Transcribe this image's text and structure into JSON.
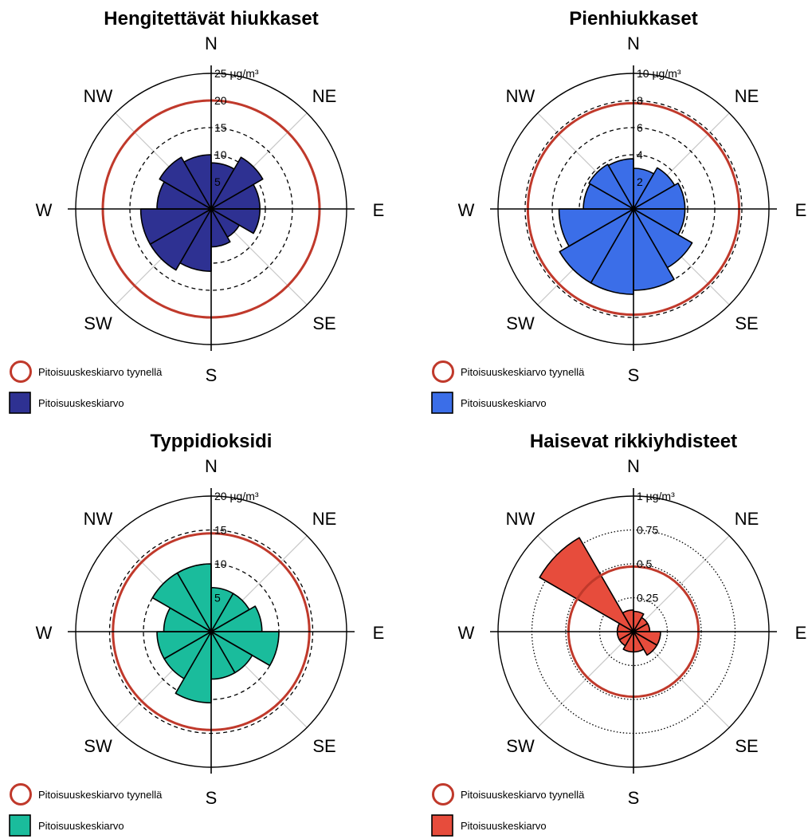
{
  "colors": {
    "calm_ring": "#c0392b",
    "axis": "#000000",
    "spoke": "#c8c8c8"
  },
  "directions": [
    "N",
    "NE",
    "E",
    "SE",
    "S",
    "SW",
    "W",
    "NW"
  ],
  "legend": {
    "calm": "Pitoisuuskeskiarvo tyynellä",
    "mean": "Pitoisuuskeskiarvo"
  },
  "chart_data": [
    {
      "type": "polar-bar",
      "title": "Hengitettävät hiukkaset",
      "unit": "µg/m³",
      "rmax": 25,
      "tick_values": [
        25,
        20,
        15,
        10,
        5
      ],
      "tick_labels": [
        "25 µg/m³",
        "20",
        "15",
        "10",
        "5"
      ],
      "dashed_rings": [
        5,
        10,
        15,
        20
      ],
      "ring_style": "dashed",
      "calm_value": 20,
      "color": "#2e3192",
      "sectors": 12,
      "values": [
        8.5,
        11,
        9,
        9,
        6,
        7,
        11.5,
        13,
        13,
        10,
        11,
        10
      ]
    },
    {
      "type": "polar-bar",
      "title": "Pienhiukkaset",
      "unit": "µg/m³",
      "rmax": 10,
      "tick_values": [
        10,
        8,
        6,
        4,
        2
      ],
      "tick_labels": [
        "10 µg/m³",
        "8",
        "6",
        "4",
        "2"
      ],
      "dashed_rings": [
        2,
        4,
        6,
        8
      ],
      "ring_style": "dashed",
      "calm_value": 7.8,
      "color": "#3b6ee8",
      "sectors": 12,
      "values": [
        3,
        3.5,
        3.8,
        3.8,
        5,
        6,
        6.3,
        6.3,
        5.5,
        3.7,
        3.8,
        3.7
      ]
    },
    {
      "type": "polar-bar",
      "title": "Typpidioksidi",
      "unit": "µg/m³",
      "rmax": 20,
      "tick_values": [
        20,
        15,
        10,
        5
      ],
      "tick_labels": [
        "20 µg/m³",
        "15",
        "10",
        "5"
      ],
      "dashed_rings": [
        5,
        10,
        15
      ],
      "ring_style": "dashed",
      "calm_value": 14.5,
      "color": "#1abc9c",
      "sectors": 12,
      "values": [
        6.5,
        6.5,
        7.5,
        10,
        7,
        7,
        10.5,
        8,
        8,
        7,
        10,
        10
      ]
    },
    {
      "type": "polar-bar",
      "title": "Haisevat rikkiyhdisteet",
      "unit": "µg/m³",
      "rmax": 1,
      "tick_values": [
        1,
        0.75,
        0.5,
        0.25
      ],
      "tick_labels": [
        "1 µg/m³",
        "0.75",
        "0.5",
        "0.25"
      ],
      "dashed_rings": [
        0.25,
        0.5,
        0.75
      ],
      "ring_style": "dotted",
      "calm_value": 0.48,
      "color": "#e74c3c",
      "sectors": 12,
      "values": [
        0.15,
        0.12,
        0.12,
        0.2,
        0.2,
        0.15,
        0.15,
        0.12,
        0.12,
        0.12,
        0.8,
        0.16
      ]
    }
  ]
}
